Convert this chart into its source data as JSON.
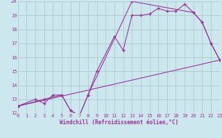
{
  "xlabel": "Windchill (Refroidissement éolien,°C)",
  "bg_color": "#cce8ee",
  "grid_color": "#aacccc",
  "line_color": "#993399",
  "xmin": 0,
  "xmax": 23,
  "ymin": 12,
  "ymax": 20,
  "series1_x": [
    0,
    2,
    3,
    4,
    5,
    6,
    7,
    8,
    9,
    11,
    12,
    13,
    14,
    15,
    16,
    17,
    18,
    19,
    20,
    21,
    22,
    23
  ],
  "series1_y": [
    12.5,
    13.0,
    12.7,
    13.3,
    13.3,
    12.2,
    11.8,
    13.3,
    15.0,
    17.5,
    16.5,
    19.0,
    19.0,
    19.1,
    19.5,
    19.3,
    19.3,
    19.8,
    19.2,
    18.5,
    17.0,
    15.8
  ],
  "series2_x": [
    0,
    3,
    5,
    6,
    7,
    8,
    13,
    20,
    21,
    22,
    23
  ],
  "series2_y": [
    12.5,
    13.0,
    13.3,
    12.2,
    11.8,
    13.3,
    20.0,
    19.2,
    18.5,
    17.0,
    15.8
  ],
  "series3_x": [
    0,
    23
  ],
  "series3_y": [
    12.5,
    15.8
  ]
}
